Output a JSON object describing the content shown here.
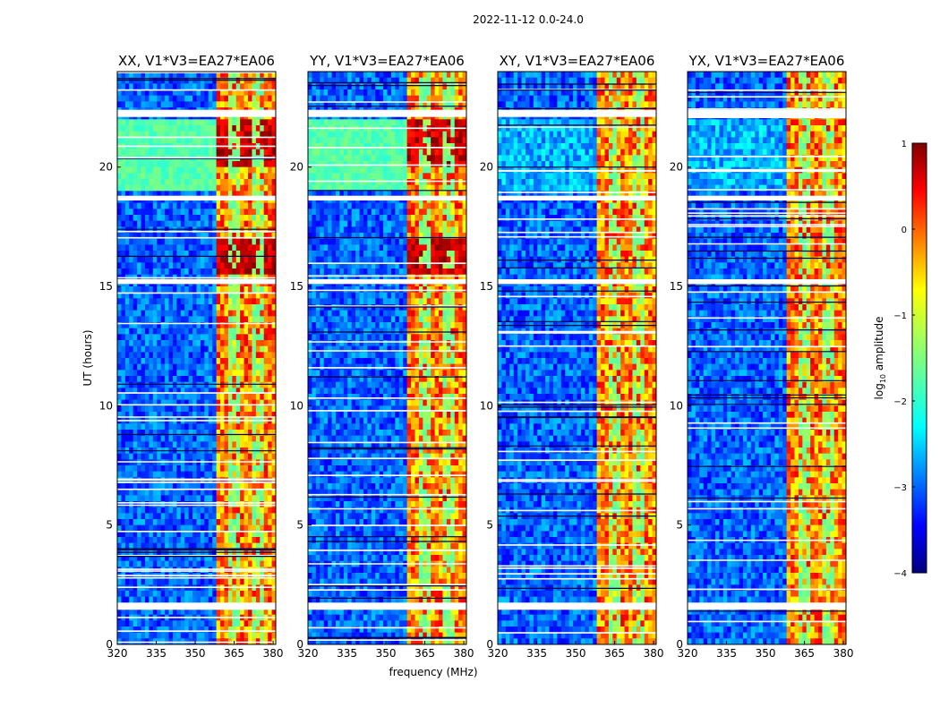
{
  "figure": {
    "suptitle": "2022-11-12 0.0-24.0",
    "xlabel": "frequency (MHz)",
    "ylabel": "UT (hours)",
    "colorbar_label_prefix": "log",
    "colorbar_label_sub": "10",
    "colorbar_label_suffix": " amplitude"
  },
  "chart_data": [
    {
      "type": "heatmap",
      "title": "XX, V1*V3=EA27*EA06",
      "xlabel": "",
      "ylabel": "UT (hours)",
      "xlim": [
        320,
        381
      ],
      "ylim": [
        0,
        24
      ],
      "xticks": [
        320,
        335,
        350,
        365,
        380
      ],
      "yticks": [
        0,
        5,
        10,
        15,
        20
      ],
      "bright_bands_mhz": [
        [
          358.5,
          381
        ]
      ],
      "flagged_ut_hours": [
        [
          1.45,
          1.75
        ],
        [
          15.1,
          15.3
        ],
        [
          18.6,
          18.8
        ],
        [
          22.1,
          22.4
        ]
      ]
    },
    {
      "type": "heatmap",
      "title": "YY, V1*V3=EA27*EA06",
      "xlabel": "frequency (MHz)",
      "ylabel": "",
      "xlim": [
        320,
        381
      ],
      "ylim": [
        0,
        24
      ],
      "xticks": [
        320,
        335,
        350,
        365,
        380
      ],
      "yticks": [
        0,
        5,
        10,
        15,
        20
      ],
      "bright_bands_mhz": [
        [
          358.5,
          381
        ]
      ],
      "flagged_ut_hours": [
        [
          1.45,
          1.75
        ],
        [
          15.1,
          15.3
        ],
        [
          18.6,
          18.8
        ],
        [
          22.1,
          22.4
        ]
      ]
    },
    {
      "type": "heatmap",
      "title": "XY, V1*V3=EA27*EA06",
      "xlabel": "",
      "ylabel": "",
      "xlim": [
        320,
        381
      ],
      "ylim": [
        0,
        24
      ],
      "xticks": [
        320,
        335,
        350,
        365,
        380
      ],
      "yticks": [
        0,
        5,
        10,
        15,
        20
      ],
      "bright_bands_mhz": [
        [
          358.5,
          381
        ]
      ],
      "flagged_ut_hours": [
        [
          1.45,
          1.75
        ],
        [
          15.1,
          15.3
        ],
        [
          18.6,
          18.8
        ],
        [
          22.1,
          22.4
        ]
      ]
    },
    {
      "type": "heatmap",
      "title": "YX, V1*V3=EA27*EA06",
      "xlabel": "",
      "ylabel": "",
      "xlim": [
        320,
        381
      ],
      "ylim": [
        0,
        24
      ],
      "xticks": [
        320,
        335,
        350,
        365,
        380
      ],
      "yticks": [
        0,
        5,
        10,
        15,
        20
      ],
      "bright_bands_mhz": [
        [
          358.5,
          381
        ]
      ],
      "flagged_ut_hours": [
        [
          1.45,
          1.75
        ],
        [
          15.1,
          15.3
        ],
        [
          18.6,
          18.8
        ],
        [
          22.1,
          22.4
        ]
      ]
    }
  ],
  "colorbar": {
    "range": [
      -4,
      1
    ],
    "ticks": [
      1,
      0,
      -1,
      -2,
      -3,
      -4
    ],
    "tick_labels": [
      "1",
      "0",
      "−1",
      "−2",
      "−3",
      "−4"
    ],
    "colormap": "jet"
  }
}
